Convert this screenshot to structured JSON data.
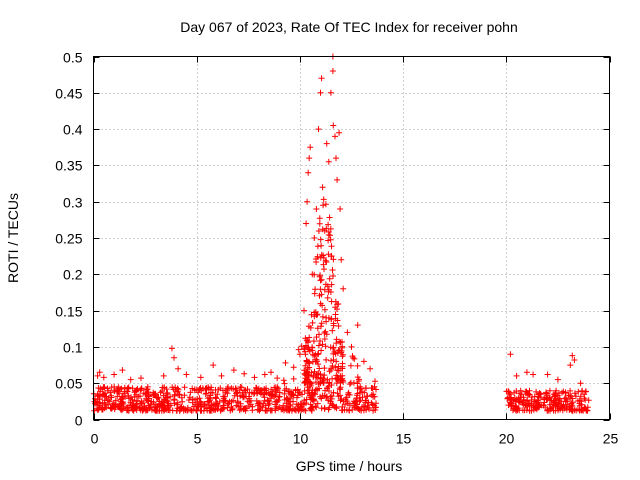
{
  "chart_data": {
    "type": "scatter",
    "title": "Day 067 of 2023, Rate Of TEC Index for receiver pohn",
    "xlabel": "GPS time / hours",
    "ylabel": "ROTI / TECUs",
    "xlim": [
      0,
      25
    ],
    "ylim": [
      0,
      0.5
    ],
    "xticks": [
      0,
      5,
      10,
      15,
      20,
      25
    ],
    "xtick_labels": [
      "0",
      "5",
      "10",
      "15",
      "20",
      "25"
    ],
    "yticks": [
      0,
      0.05,
      0.1,
      0.15,
      0.2,
      0.25,
      0.3,
      0.35,
      0.4,
      0.45,
      0.5
    ],
    "ytick_labels": [
      "0",
      "0.05",
      "0.1",
      "0.15",
      "0.2",
      "0.25",
      "0.3",
      "0.35",
      "0.4",
      "0.45",
      "0.5"
    ],
    "grid": true,
    "marker": "+",
    "color": "#ff0000",
    "series": [
      {
        "name": "ROTI",
        "segments": [
          {
            "x_start": 0.0,
            "x_end": 13.7,
            "baseline_min": 0.012,
            "baseline_max": 0.045
          },
          {
            "x_start": 20.0,
            "x_end": 24.0,
            "baseline_min": 0.012,
            "baseline_max": 0.04
          }
        ],
        "points": [
          {
            "x": 0.2,
            "y": 0.06
          },
          {
            "x": 0.3,
            "y": 0.065
          },
          {
            "x": 0.5,
            "y": 0.058
          },
          {
            "x": 1.0,
            "y": 0.062
          },
          {
            "x": 1.4,
            "y": 0.068
          },
          {
            "x": 1.8,
            "y": 0.055
          },
          {
            "x": 2.3,
            "y": 0.057
          },
          {
            "x": 3.4,
            "y": 0.06
          },
          {
            "x": 3.8,
            "y": 0.098
          },
          {
            "x": 3.9,
            "y": 0.085
          },
          {
            "x": 4.1,
            "y": 0.07
          },
          {
            "x": 4.5,
            "y": 0.062
          },
          {
            "x": 5.2,
            "y": 0.058
          },
          {
            "x": 5.8,
            "y": 0.075
          },
          {
            "x": 6.2,
            "y": 0.06
          },
          {
            "x": 6.8,
            "y": 0.068
          },
          {
            "x": 7.3,
            "y": 0.063
          },
          {
            "x": 7.8,
            "y": 0.058
          },
          {
            "x": 8.3,
            "y": 0.062
          },
          {
            "x": 8.6,
            "y": 0.065
          },
          {
            "x": 8.9,
            "y": 0.057
          },
          {
            "x": 9.3,
            "y": 0.078
          },
          {
            "x": 9.7,
            "y": 0.072
          },
          {
            "x": 10.0,
            "y": 0.09
          },
          {
            "x": 10.2,
            "y": 0.15
          },
          {
            "x": 10.3,
            "y": 0.27
          },
          {
            "x": 10.35,
            "y": 0.3
          },
          {
            "x": 10.4,
            "y": 0.34
          },
          {
            "x": 10.45,
            "y": 0.36
          },
          {
            "x": 10.5,
            "y": 0.375
          },
          {
            "x": 10.6,
            "y": 0.2
          },
          {
            "x": 10.7,
            "y": 0.25
          },
          {
            "x": 10.8,
            "y": 0.29
          },
          {
            "x": 10.9,
            "y": 0.4
          },
          {
            "x": 11.0,
            "y": 0.45
          },
          {
            "x": 11.05,
            "y": 0.47
          },
          {
            "x": 11.1,
            "y": 0.32
          },
          {
            "x": 11.2,
            "y": 0.26
          },
          {
            "x": 11.3,
            "y": 0.38
          },
          {
            "x": 11.4,
            "y": 0.355
          },
          {
            "x": 11.5,
            "y": 0.45
          },
          {
            "x": 11.6,
            "y": 0.48
          },
          {
            "x": 11.6,
            "y": 0.5
          },
          {
            "x": 11.62,
            "y": 0.405
          },
          {
            "x": 11.7,
            "y": 0.39
          },
          {
            "x": 11.75,
            "y": 0.36
          },
          {
            "x": 11.8,
            "y": 0.33
          },
          {
            "x": 11.9,
            "y": 0.395
          },
          {
            "x": 11.95,
            "y": 0.29
          },
          {
            "x": 12.0,
            "y": 0.22
          },
          {
            "x": 12.1,
            "y": 0.18
          },
          {
            "x": 12.3,
            "y": 0.12
          },
          {
            "x": 12.5,
            "y": 0.1
          },
          {
            "x": 12.8,
            "y": 0.13
          },
          {
            "x": 13.1,
            "y": 0.08
          },
          {
            "x": 13.4,
            "y": 0.07
          },
          {
            "x": 20.2,
            "y": 0.09
          },
          {
            "x": 20.5,
            "y": 0.06
          },
          {
            "x": 21.0,
            "y": 0.065
          },
          {
            "x": 21.3,
            "y": 0.062
          },
          {
            "x": 22.0,
            "y": 0.062
          },
          {
            "x": 22.5,
            "y": 0.055
          },
          {
            "x": 23.1,
            "y": 0.075
          },
          {
            "x": 23.2,
            "y": 0.088
          },
          {
            "x": 23.3,
            "y": 0.082
          },
          {
            "x": 23.6,
            "y": 0.05
          }
        ]
      }
    ]
  }
}
